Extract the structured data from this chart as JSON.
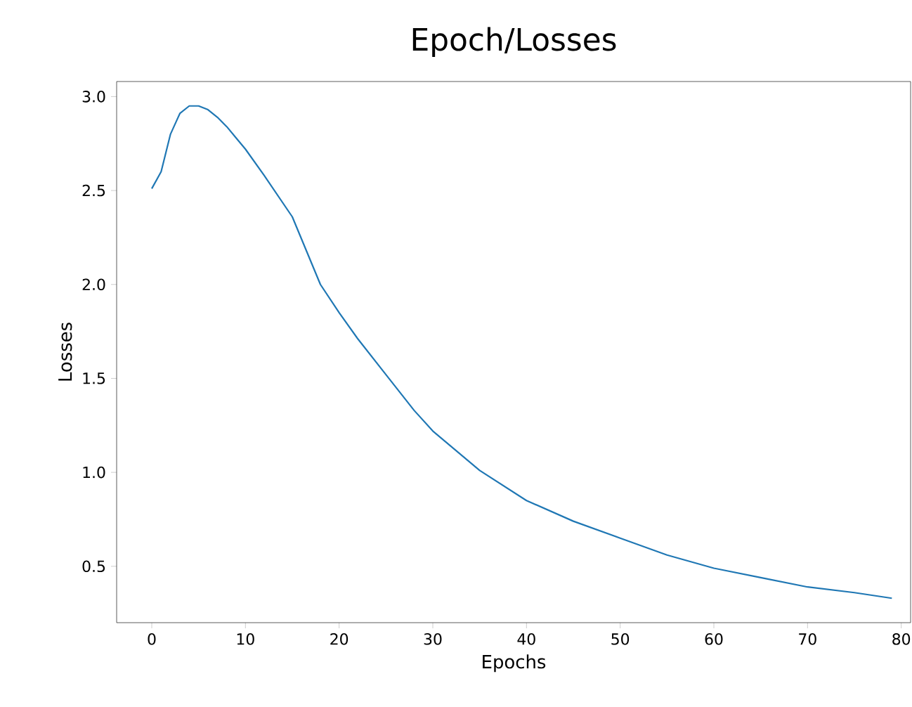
{
  "chart_data": {
    "type": "line",
    "title": "Epoch/Losses",
    "xlabel": "Epochs",
    "ylabel": "Losses",
    "x": [
      0,
      1,
      2,
      3,
      4,
      5,
      6,
      7,
      8,
      9,
      10,
      12,
      15,
      18,
      20,
      22,
      25,
      28,
      30,
      35,
      40,
      45,
      50,
      55,
      60,
      65,
      70,
      75,
      79
    ],
    "series": [
      {
        "color": "#1f77b4",
        "values": [
          2.51,
          2.6,
          2.8,
          2.91,
          2.95,
          2.95,
          2.93,
          2.89,
          2.84,
          2.78,
          2.72,
          2.58,
          2.36,
          2.0,
          1.85,
          1.71,
          1.52,
          1.33,
          1.22,
          1.01,
          0.85,
          0.74,
          0.65,
          0.56,
          0.49,
          0.44,
          0.39,
          0.36,
          0.33
        ]
      }
    ],
    "xlim": [
      -3.75,
      81
    ],
    "ylim": [
      0.2,
      3.08
    ],
    "xticks": [
      0,
      10,
      20,
      30,
      40,
      50,
      60,
      70,
      80
    ],
    "yticks": [
      0.5,
      {
        "value": 1,
        "label": "1.0"
      },
      1.5,
      {
        "value": 2,
        "label": "2.0"
      },
      2.5,
      {
        "value": 3,
        "label": "3.0"
      }
    ],
    "marker": "none",
    "line_style": "solid"
  }
}
